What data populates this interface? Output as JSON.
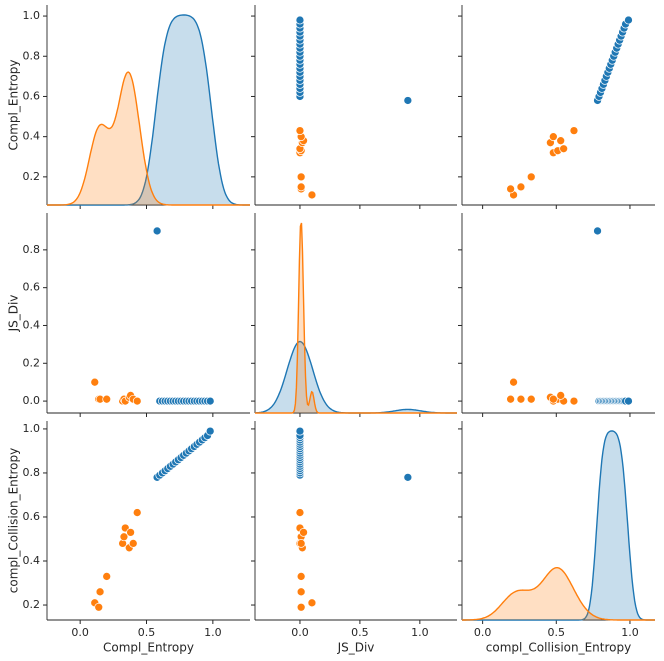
{
  "chart_data": {
    "type": "pairplot",
    "variables": [
      "Compl_Entropy",
      "JS_Div",
      "compl_Collision_Entropy"
    ],
    "axes": [
      {
        "lim": [
          -0.25,
          1.28
        ],
        "ylim": [
          0.06,
          1.055
        ],
        "ticks": [
          {
            "value": 0,
            "label": "0.0"
          },
          {
            "value": 0.5,
            "label": "0.5"
          },
          {
            "value": 1,
            "label": "1.0"
          }
        ],
        "yticks": [
          0.2,
          0.4,
          0.6,
          0.8,
          {
            "value": 1,
            "label": "1.0"
          }
        ]
      },
      {
        "lim": [
          -0.375,
          1.31
        ],
        "ylim": [
          -0.063,
          0.995
        ],
        "ticks": [
          {
            "value": 0,
            "label": "0.0"
          },
          {
            "value": 0.5,
            "label": "0.5"
          },
          {
            "value": 1,
            "label": "1.0"
          }
        ],
        "yticks": [
          {
            "value": 0,
            "label": "0.0"
          },
          0.2,
          0.4,
          0.6,
          0.8
        ]
      },
      {
        "lim": [
          -0.14,
          1.17
        ],
        "ylim": [
          0.132,
          1.036
        ],
        "ticks": [
          {
            "value": 0,
            "label": "0.0"
          },
          {
            "value": 0.5,
            "label": "0.5"
          },
          {
            "value": 1,
            "label": "1.0"
          }
        ],
        "yticks": [
          0.2,
          0.4,
          0.6,
          0.8,
          {
            "value": 1,
            "label": "1.0"
          }
        ]
      }
    ],
    "series": [
      {
        "color": "#1f77b4",
        "values": [
          [
            0.58,
            0.6,
            0.62,
            0.64,
            0.66,
            0.68,
            0.7,
            0.72,
            0.74,
            0.76,
            0.78,
            0.8,
            0.82,
            0.84,
            0.86,
            0.88,
            0.9,
            0.92,
            0.94,
            0.96,
            0.98
          ],
          [
            0.9,
            0,
            0,
            0,
            0,
            0,
            0,
            0,
            0,
            0,
            0,
            0,
            0,
            0,
            0,
            0,
            0,
            0,
            0,
            0,
            0
          ],
          [
            0.78,
            0.79,
            0.8,
            0.81,
            0.82,
            0.83,
            0.84,
            0.85,
            0.86,
            0.87,
            0.88,
            0.89,
            0.9,
            0.91,
            0.92,
            0.93,
            0.94,
            0.95,
            0.96,
            0.97,
            0.99
          ]
        ]
      },
      {
        "color": "#ff7f0e",
        "values": [
          [
            0.11,
            0.14,
            0.15,
            0.2,
            0.32,
            0.33,
            0.34,
            0.37,
            0.38,
            0.4,
            0.43
          ],
          [
            0.1,
            0.01,
            0.01,
            0.01,
            0,
            0.01,
            0,
            0.02,
            0.03,
            0.01,
            0
          ],
          [
            0.21,
            0.19,
            0.26,
            0.33,
            0.48,
            0.51,
            0.55,
            0.46,
            0.53,
            0.48,
            0.62
          ]
        ]
      }
    ]
  }
}
